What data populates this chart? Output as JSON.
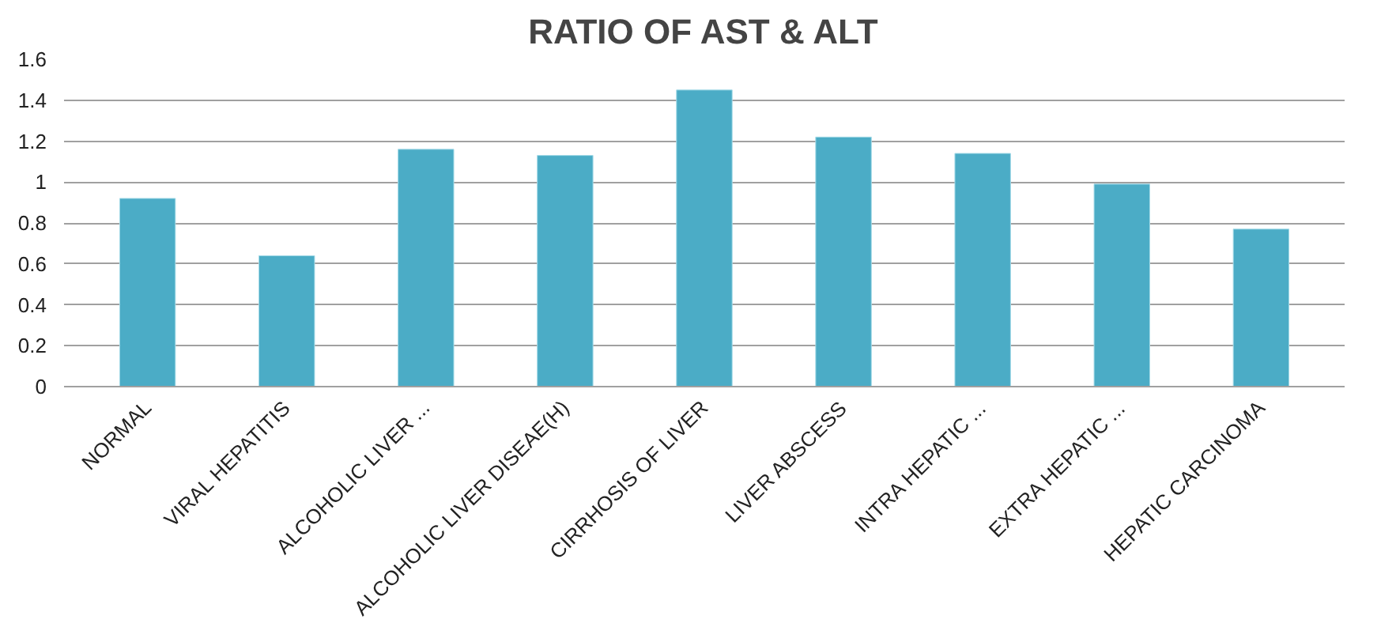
{
  "chart_data": {
    "type": "bar",
    "title": "RATIO OF AST & ALT",
    "categories": [
      "NORMAL",
      "VIRAL HEPATITIS",
      "ALCOHOLIC LIVER ...",
      "ALCOHOLIC LIVER DISEAE(H)",
      "CIRRHOSIS OF LIVER",
      "LIVER ABSCESS",
      "INTRA HEPATIC ...",
      "EXTRA HEPATIC ...",
      "HEPATIC CARCINOMA"
    ],
    "values": [
      0.92,
      0.64,
      1.16,
      1.13,
      1.45,
      1.22,
      1.14,
      0.99,
      0.77
    ],
    "color": "#4bacc6",
    "ylim": [
      0,
      1.6
    ],
    "yticks": [
      0,
      0.2,
      0.4,
      0.6,
      0.8,
      1,
      1.2,
      1.4,
      1.6
    ],
    "grid": "y"
  }
}
